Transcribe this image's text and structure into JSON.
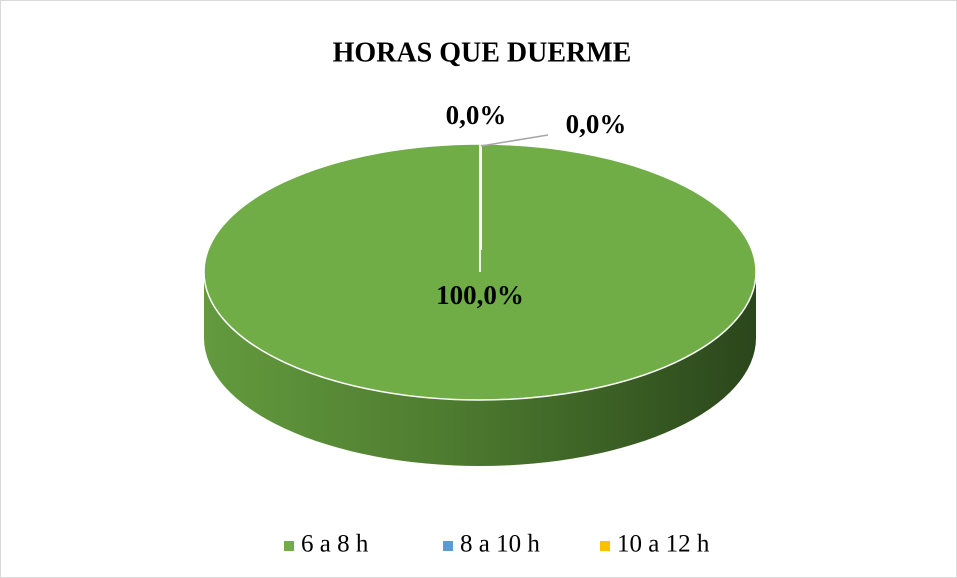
{
  "chart_data": {
    "type": "pie",
    "title": "HORAS QUE DUERME",
    "categories": [
      "6 a 8 h",
      "8 a 10 h",
      "10 a 12 h"
    ],
    "values": [
      100,
      0,
      0
    ],
    "value_labels": [
      "100,0%",
      "0,0%",
      "0,0%"
    ],
    "colors": [
      "#70ad47",
      "#5b9bd5",
      "#ffc000"
    ],
    "legend": "bottom"
  }
}
